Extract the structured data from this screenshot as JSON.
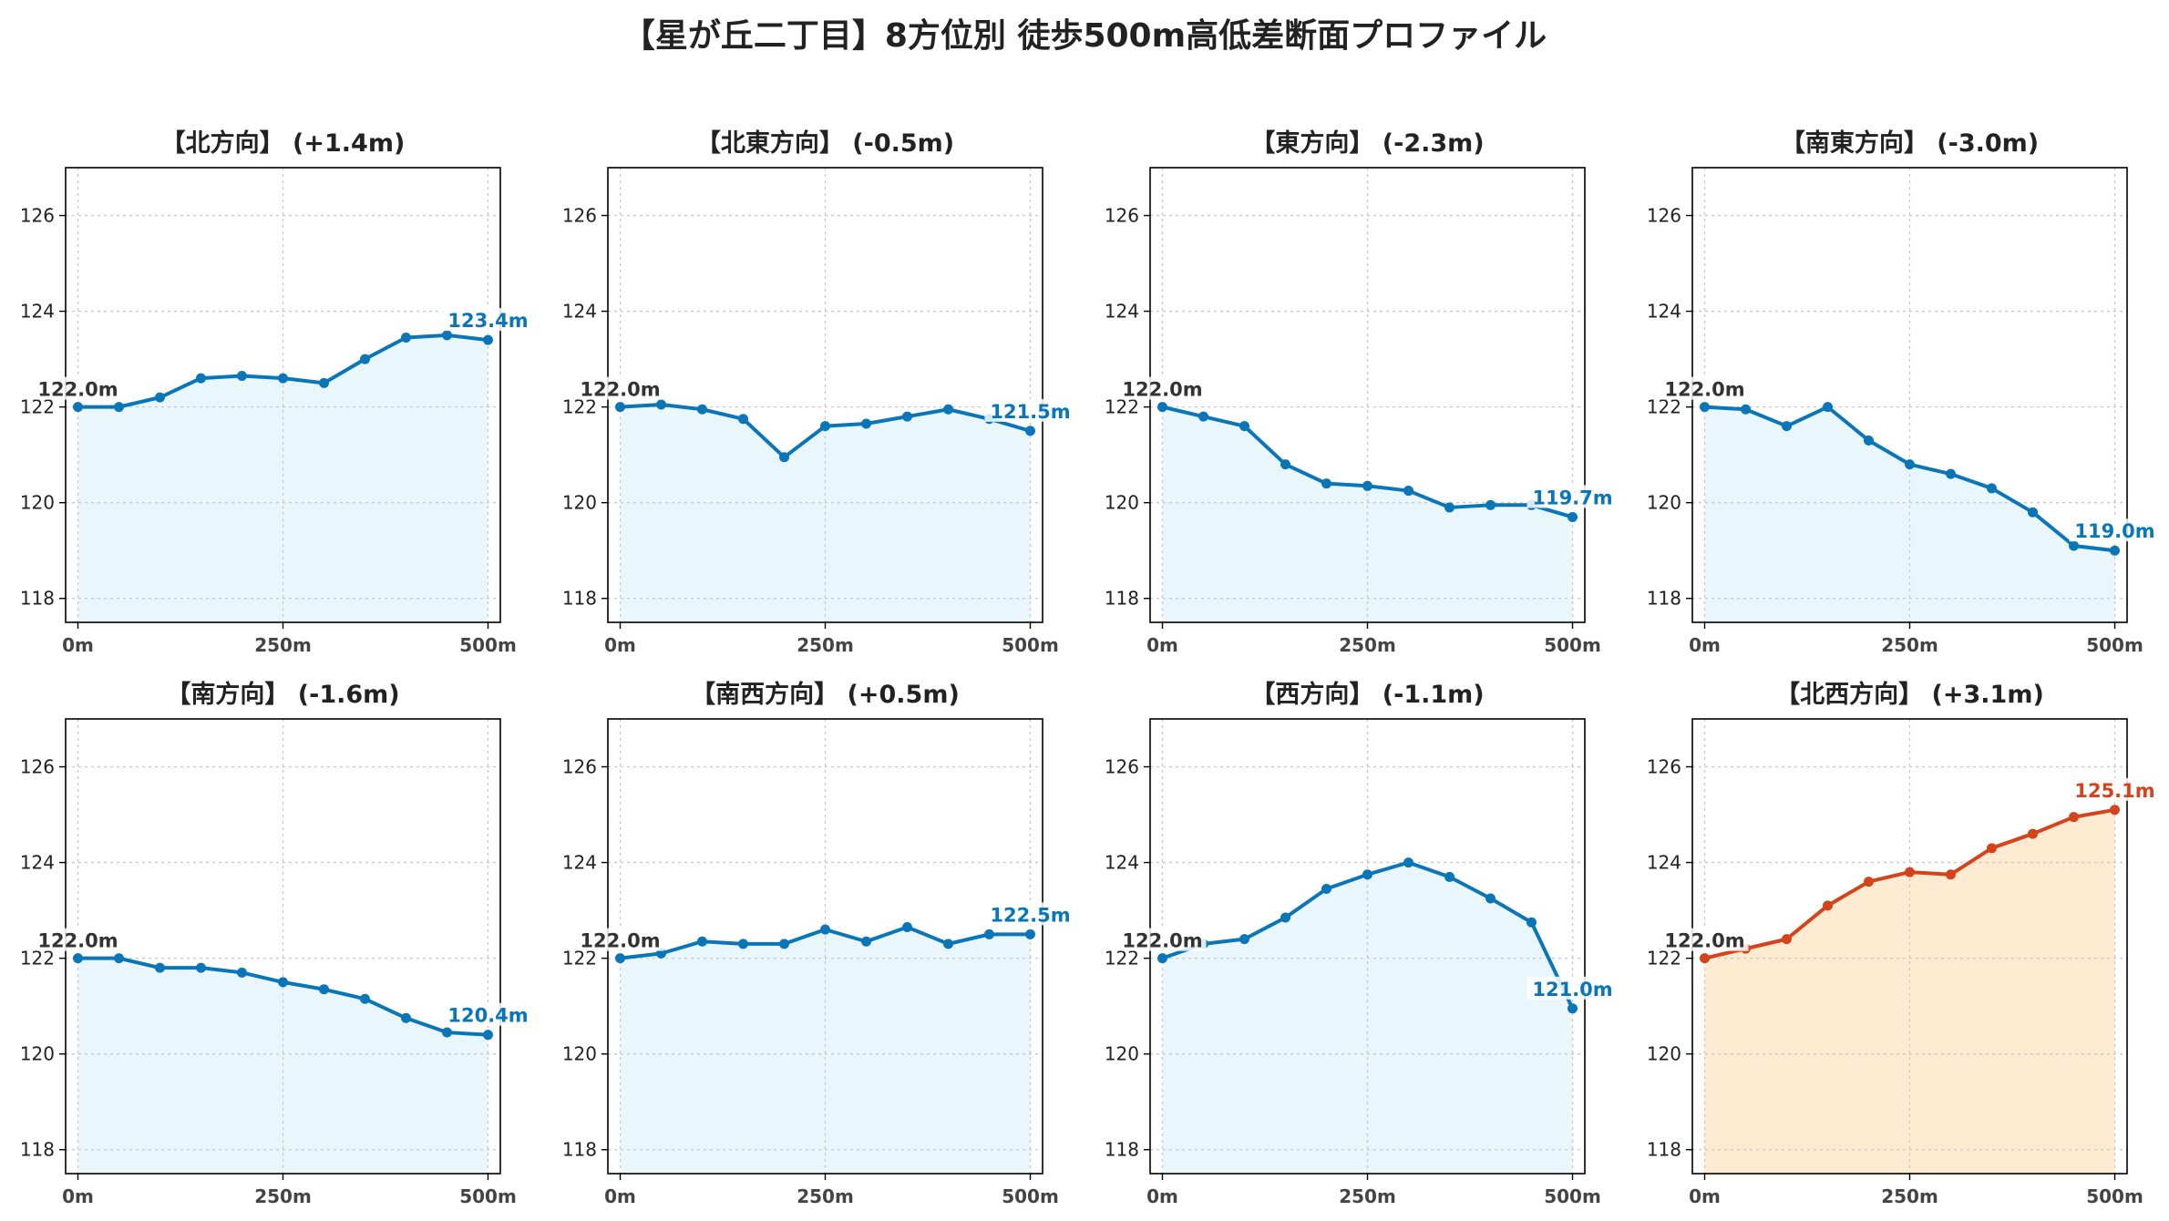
{
  "title": "【星が丘二丁目】8方位別 徒歩500m高低差断面プロファイル",
  "colors": {
    "default_line": "#0a76b8",
    "default_fill": "#e9f7fc",
    "highlight_line": "#d4441c",
    "highlight_fill": "#feebd1",
    "start_label": "#333333"
  },
  "chart_data": [
    {
      "type": "area",
      "title": "【北方向】 (+1.4m)",
      "x": [
        0,
        50,
        100,
        150,
        200,
        250,
        300,
        350,
        400,
        450,
        500
      ],
      "y": [
        122.0,
        122.0,
        122.2,
        122.6,
        122.65,
        122.6,
        122.5,
        123.0,
        123.45,
        123.5,
        123.4
      ],
      "xticks": [
        "0m",
        "250m",
        "500m"
      ],
      "yticks": [
        118,
        120,
        122,
        124,
        126
      ],
      "ylim": [
        117.5,
        127.0
      ],
      "start_label": "122.0m",
      "end_label": "123.4m",
      "highlight": false,
      "grid": true
    },
    {
      "type": "area",
      "title": "【北東方向】 (-0.5m)",
      "x": [
        0,
        50,
        100,
        150,
        200,
        250,
        300,
        350,
        400,
        450,
        500
      ],
      "y": [
        122.0,
        122.05,
        121.95,
        121.75,
        120.95,
        121.6,
        121.65,
        121.8,
        121.95,
        121.75,
        121.5
      ],
      "xticks": [
        "0m",
        "250m",
        "500m"
      ],
      "yticks": [
        118,
        120,
        122,
        124,
        126
      ],
      "ylim": [
        117.5,
        127.0
      ],
      "start_label": "122.0m",
      "end_label": "121.5m",
      "highlight": false,
      "grid": true
    },
    {
      "type": "area",
      "title": "【東方向】 (-2.3m)",
      "x": [
        0,
        50,
        100,
        150,
        200,
        250,
        300,
        350,
        400,
        450,
        500
      ],
      "y": [
        122.0,
        121.8,
        121.6,
        120.8,
        120.4,
        120.35,
        120.25,
        119.9,
        119.95,
        119.95,
        119.7
      ],
      "xticks": [
        "0m",
        "250m",
        "500m"
      ],
      "yticks": [
        118,
        120,
        122,
        124,
        126
      ],
      "ylim": [
        117.5,
        127.0
      ],
      "start_label": "122.0m",
      "end_label": "119.7m",
      "highlight": false,
      "grid": true
    },
    {
      "type": "area",
      "title": "【南東方向】 (-3.0m)",
      "x": [
        0,
        50,
        100,
        150,
        200,
        250,
        300,
        350,
        400,
        450,
        500
      ],
      "y": [
        122.0,
        121.95,
        121.6,
        122.0,
        121.3,
        120.8,
        120.6,
        120.3,
        119.8,
        119.1,
        119.0
      ],
      "xticks": [
        "0m",
        "250m",
        "500m"
      ],
      "yticks": [
        118,
        120,
        122,
        124,
        126
      ],
      "ylim": [
        117.5,
        127.0
      ],
      "start_label": "122.0m",
      "end_label": "119.0m",
      "highlight": false,
      "grid": true
    },
    {
      "type": "area",
      "title": "【南方向】 (-1.6m)",
      "x": [
        0,
        50,
        100,
        150,
        200,
        250,
        300,
        350,
        400,
        450,
        500
      ],
      "y": [
        122.0,
        122.0,
        121.8,
        121.8,
        121.7,
        121.5,
        121.35,
        121.15,
        120.75,
        120.45,
        120.4
      ],
      "xticks": [
        "0m",
        "250m",
        "500m"
      ],
      "yticks": [
        118,
        120,
        122,
        124,
        126
      ],
      "ylim": [
        117.5,
        127.0
      ],
      "start_label": "122.0m",
      "end_label": "120.4m",
      "highlight": false,
      "grid": true
    },
    {
      "type": "area",
      "title": "【南西方向】 (+0.5m)",
      "x": [
        0,
        50,
        100,
        150,
        200,
        250,
        300,
        350,
        400,
        450,
        500
      ],
      "y": [
        122.0,
        122.1,
        122.35,
        122.3,
        122.3,
        122.6,
        122.35,
        122.65,
        122.3,
        122.5,
        122.5
      ],
      "xticks": [
        "0m",
        "250m",
        "500m"
      ],
      "yticks": [
        118,
        120,
        122,
        124,
        126
      ],
      "ylim": [
        117.5,
        127.0
      ],
      "start_label": "122.0m",
      "end_label": "122.5m",
      "highlight": false,
      "grid": true
    },
    {
      "type": "area",
      "title": "【西方向】 (-1.1m)",
      "x": [
        0,
        50,
        100,
        150,
        200,
        250,
        300,
        350,
        400,
        450,
        500
      ],
      "y": [
        122.0,
        122.3,
        122.4,
        122.85,
        123.45,
        123.75,
        124.0,
        123.7,
        123.25,
        122.75,
        120.95
      ],
      "xticks": [
        "0m",
        "250m",
        "500m"
      ],
      "yticks": [
        118,
        120,
        122,
        124,
        126
      ],
      "ylim": [
        117.5,
        127.0
      ],
      "start_label": "122.0m",
      "end_label": "121.0m",
      "highlight": false,
      "grid": true
    },
    {
      "type": "area",
      "title": "【北西方向】 (+3.1m)",
      "x": [
        0,
        50,
        100,
        150,
        200,
        250,
        300,
        350,
        400,
        450,
        500
      ],
      "y": [
        122.0,
        122.2,
        122.4,
        123.1,
        123.6,
        123.8,
        123.75,
        124.3,
        124.6,
        124.95,
        125.1
      ],
      "xticks": [
        "0m",
        "250m",
        "500m"
      ],
      "yticks": [
        118,
        120,
        122,
        124,
        126
      ],
      "ylim": [
        117.5,
        127.0
      ],
      "start_label": "122.0m",
      "end_label": "125.1m",
      "highlight": true,
      "grid": true
    }
  ]
}
